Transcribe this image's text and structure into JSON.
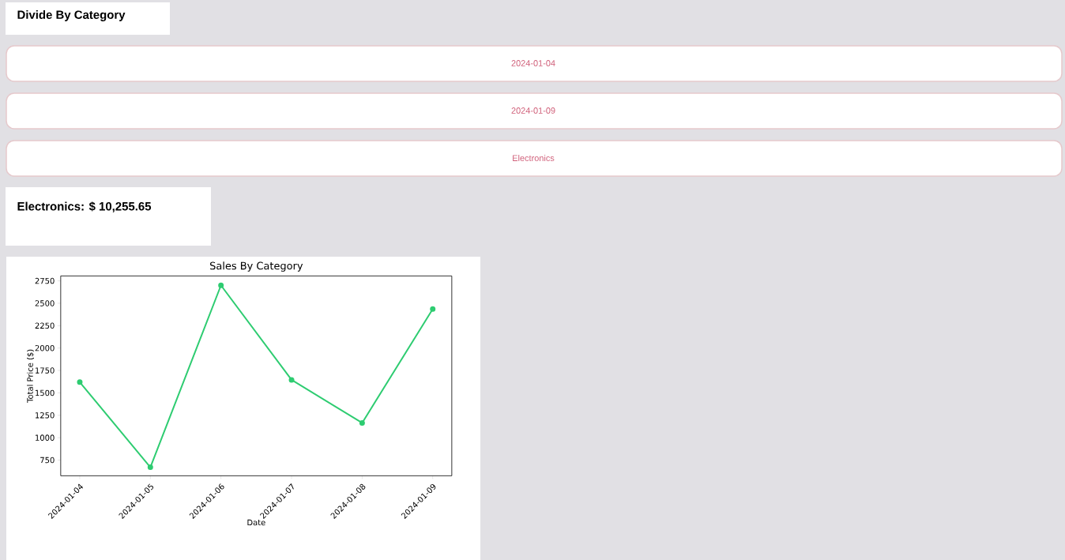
{
  "chart_data": [
    {
      "type": "other",
      "title": "Divide By Category",
      "annotations": [
        "2024-01-04",
        "2024-01-09",
        "Electronics",
        "Electronics: $ 10,255.65"
      ]
    },
    {
      "type": "line",
      "title": "Sales By Category",
      "xlabel": "Date",
      "ylabel": "Total Price ($)",
      "categories": [
        "2024-01-04",
        "2024-01-05",
        "2024-01-06",
        "2024-01-07",
        "2024-01-08",
        "2024-01-09"
      ],
      "series": [
        {
          "color": "#2ecc71",
          "values": [
            1620,
            670,
            2700,
            1645,
            1165,
            2435
          ]
        }
      ],
      "ylim": [
        575,
        2805
      ],
      "yticks": [
        750,
        1000,
        1250,
        1500,
        1750,
        2000,
        2250,
        2500,
        2750
      ],
      "marker": "circle"
    }
  ]
}
